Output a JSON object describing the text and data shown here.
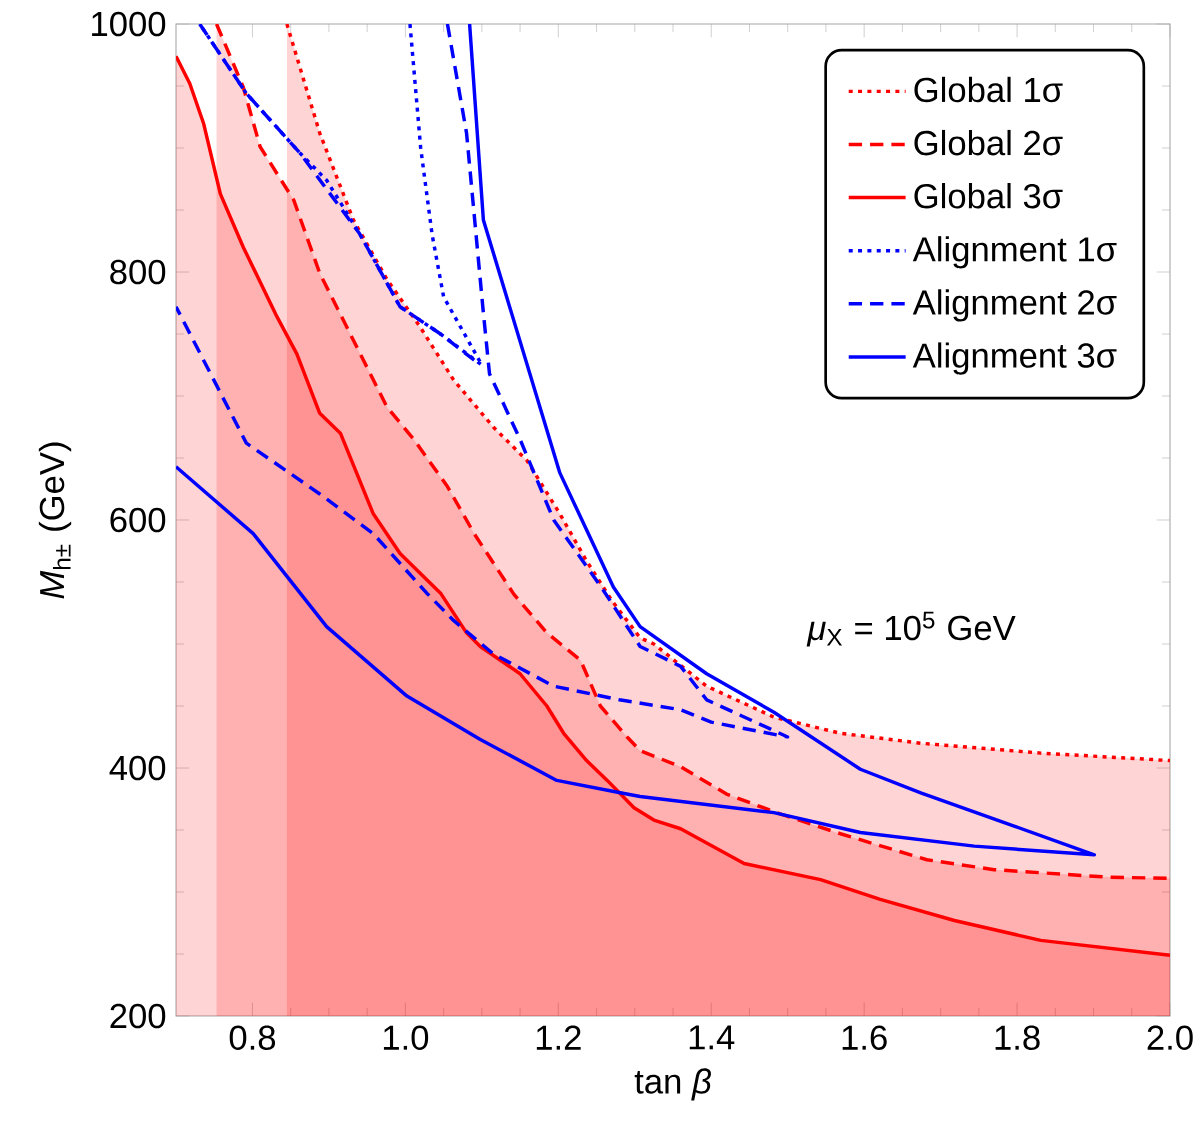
{
  "chart_data": {
    "type": "area",
    "xlabel": "tan *β*",
    "ylabel": "*M*$_{h±}$ (GeV)",
    "xlim": [
      0.7,
      2.0
    ],
    "ylim": [
      200,
      1000
    ],
    "xticks": [
      {
        "value": 0.8,
        "label": "0.8"
      },
      {
        "value": 1.0,
        "label": "1.0"
      },
      {
        "value": 1.2,
        "label": "1.2"
      },
      {
        "value": 1.4,
        "label": "1.4"
      },
      {
        "value": 1.6,
        "label": "1.6"
      },
      {
        "value": 1.8,
        "label": "1.8"
      },
      {
        "value": 2.0,
        "label": "2.0"
      }
    ],
    "yticks": [
      200,
      400,
      600,
      800,
      1000
    ],
    "grid": false,
    "legend": "top right",
    "annotations": [
      "*μ*$_{X}$ = 10$^{5}$ GeV"
    ],
    "series": [
      {
        "name": "Global 1σ",
        "color": "#ff0000",
        "line_style": "dotted",
        "x": [
          0.845,
          0.888,
          0.932,
          0.976,
          1.019,
          1.063,
          1.115,
          1.159,
          1.202,
          1.236,
          1.27,
          1.307,
          1.325,
          1.394,
          1.482,
          1.569,
          1.674,
          1.831,
          2.0
        ],
        "values": [
          1000,
          912,
          842,
          794,
          756,
          713,
          675,
          648,
          605,
          568,
          535,
          505,
          500,
          466,
          441,
          428,
          420,
          412,
          406
        ]
      },
      {
        "name": "Global 2σ",
        "color": "#ff0000",
        "line_style": "dashed",
        "x": [
          0.753,
          0.788,
          0.81,
          0.854,
          0.888,
          0.932,
          0.976,
          1.011,
          1.055,
          1.09,
          1.142,
          1.185,
          1.229,
          1.255,
          1.29,
          1.307,
          1.36,
          1.42,
          1.49,
          1.569,
          1.682,
          1.77,
          1.918,
          2.0
        ],
        "values": [
          1000,
          949,
          901,
          858,
          799,
          745,
          691,
          665,
          627,
          589,
          540,
          509,
          487,
          450,
          425,
          414,
          401,
          379,
          363,
          347,
          326,
          318,
          312,
          311
        ]
      },
      {
        "name": "Global 3σ",
        "color": "#ff0000",
        "line_style": "solid",
        "x": [
          0.7,
          0.718,
          0.736,
          0.758,
          0.788,
          0.832,
          0.858,
          0.888,
          0.915,
          0.958,
          0.993,
          1.046,
          1.08,
          1.098,
          1.15,
          1.185,
          1.207,
          1.237,
          1.264,
          1.299,
          1.325,
          1.36,
          1.443,
          1.543,
          1.621,
          1.718,
          1.831,
          2.0
        ],
        "values": [
          974,
          952,
          920,
          863,
          820,
          764,
          734,
          686,
          670,
          605,
          573,
          541,
          509,
          498,
          476,
          450,
          428,
          406,
          390,
          368,
          358,
          351,
          323,
          310,
          294,
          277,
          261,
          249
        ]
      },
      {
        "name": "Alignment 1σ",
        "type": "line",
        "color": "#0000ff",
        "line_style": "dotted",
        "x": [
          1.006,
          1.02,
          1.035,
          1.05,
          1.1,
          1.046,
          0.993,
          0.94,
          0.897,
          0.862,
          0.792,
          0.731
        ],
        "values": [
          1000,
          900,
          830,
          780,
          725,
          750,
          772,
          831,
          874,
          896,
          944,
          1000
        ]
      },
      {
        "name": "Alignment 2σ",
        "type": "line",
        "color": "#0000ff",
        "line_style": "dashed",
        "x": [
          1.055,
          1.08,
          1.102,
          1.11,
          1.15,
          1.194,
          1.256,
          1.307,
          1.36,
          1.394,
          1.5,
          1.4,
          1.36,
          1.28,
          1.194,
          1.115,
          1.063,
          1.028,
          0.958,
          0.888,
          0.792,
          0.7,
          null,
          0.731,
          0.792,
          0.862,
          0.94,
          0.993,
          1.046,
          1.09
        ],
        "values": [
          1000,
          912,
          767,
          718,
          665,
          600,
          546,
          498,
          482,
          455,
          425,
          437,
          447,
          455,
          466,
          492,
          519,
          541,
          589,
          621,
          662,
          772,
          null,
          1000,
          944,
          896,
          831,
          772,
          750,
          729
        ]
      },
      {
        "name": "Alignment 3σ",
        "type": "line",
        "color": "#0000ff",
        "line_style": "solid",
        "x": [
          1.084,
          1.102,
          1.202,
          1.272,
          1.307,
          1.394,
          1.482,
          1.595,
          1.674,
          1.797,
          1.901,
          1.744,
          1.595,
          1.482,
          1.307,
          1.281,
          1.198,
          1.098,
          1.002,
          0.897,
          0.801,
          0.7
        ],
        "values": [
          1000,
          842,
          638,
          546,
          514,
          476,
          445,
          399,
          380,
          353,
          330,
          337,
          348,
          364,
          377,
          380,
          390,
          423,
          458,
          514,
          589,
          643
        ]
      }
    ]
  }
}
